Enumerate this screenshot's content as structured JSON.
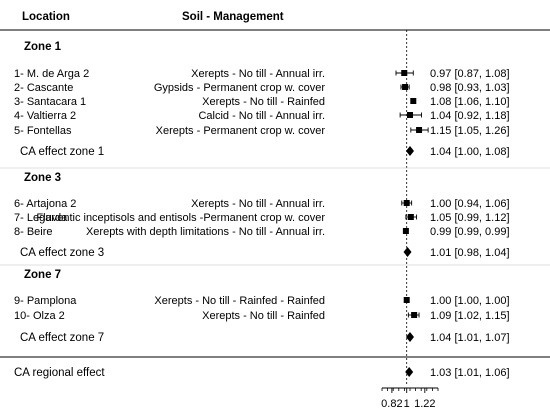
{
  "chart_data": {
    "type": "forest",
    "header": {
      "location": "Location",
      "soil_management": "Soil - Management"
    },
    "axis": {
      "xlim": [
        0.7,
        1.38
      ],
      "tick_labels": [
        "0.82",
        "1",
        "1.22"
      ],
      "tick_values": [
        0.82,
        1.0,
        1.22
      ],
      "reference_line": 1.0
    },
    "groups": [
      {
        "label": "Zone 1",
        "rows": [
          {
            "location": "1- M. de Arga 2",
            "soil": "Xerepts - No till - Annual irr.",
            "est": 0.97,
            "lo": 0.87,
            "hi": 1.08,
            "ci_text": "0.97 [0.87, 1.08]"
          },
          {
            "location": "2- Cascante",
            "soil": "Gypsids - Permanent crop w. cover",
            "est": 0.98,
            "lo": 0.93,
            "hi": 1.03,
            "ci_text": "0.98 [0.93, 1.03]"
          },
          {
            "location": "3- Santacara 1",
            "soil": "Xerepts - No till - Rainfed",
            "est": 1.08,
            "lo": 1.06,
            "hi": 1.1,
            "ci_text": "1.08 [1.06, 1.10]"
          },
          {
            "location": "4- Valtierra 2",
            "soil": "Calcid - No till - Annual irr.",
            "est": 1.04,
            "lo": 0.92,
            "hi": 1.18,
            "ci_text": "1.04 [0.92, 1.18]"
          },
          {
            "location": "5- Fontellas",
            "soil": "Xerepts - Permanent crop w. cover",
            "est": 1.15,
            "lo": 1.05,
            "hi": 1.26,
            "ci_text": "1.15 [1.05, 1.26]"
          }
        ],
        "summary": {
          "label": "CA effect zone 1",
          "est": 1.04,
          "lo": 1.0,
          "hi": 1.08,
          "ci_text": "1.04 [1.00, 1.08]"
        }
      },
      {
        "label": "Zone 3",
        "rows": [
          {
            "location": "6- Artajona 2",
            "soil": "Xerepts - No till - Annual irr.",
            "est": 1.0,
            "lo": 0.94,
            "hi": 1.06,
            "ci_text": "1.00 [0.94, 1.06]"
          },
          {
            "location": "7- Legarda",
            "soil": "Fluventic inceptisols and entisols -Permanent crop w. cover",
            "est": 1.05,
            "lo": 0.99,
            "hi": 1.12,
            "ci_text": "1.05 [0.99, 1.12]"
          },
          {
            "location": "8- Beire",
            "soil": "Xerepts with depth limitations - No till - Annual irr.",
            "est": 0.99,
            "lo": 0.99,
            "hi": 0.99,
            "ci_text": "0.99 [0.99, 0.99]"
          }
        ],
        "summary": {
          "label": "CA effect zone 3",
          "est": 1.01,
          "lo": 0.98,
          "hi": 1.04,
          "ci_text": "1.01 [0.98, 1.04]"
        }
      },
      {
        "label": "Zone 7",
        "rows": [
          {
            "location": "9- Pamplona",
            "soil": "Xerepts - No till - Rainfed - Rainfed",
            "est": 1.0,
            "lo": 1.0,
            "hi": 1.0,
            "ci_text": "1.00 [1.00, 1.00]"
          },
          {
            "location": "10- Olza 2",
            "soil": "Xerepts - No till - Rainfed",
            "est": 1.09,
            "lo": 1.02,
            "hi": 1.15,
            "ci_text": "1.09 [1.02, 1.15]"
          }
        ],
        "summary": {
          "label": "CA effect zone 7",
          "est": 1.04,
          "lo": 1.01,
          "hi": 1.07,
          "ci_text": "1.04 [1.01, 1.07]"
        }
      }
    ],
    "overall": {
      "label": "CA regional effect",
      "est": 1.03,
      "lo": 1.01,
      "hi": 1.06,
      "ci_text": "1.03 [1.01, 1.06]"
    }
  }
}
